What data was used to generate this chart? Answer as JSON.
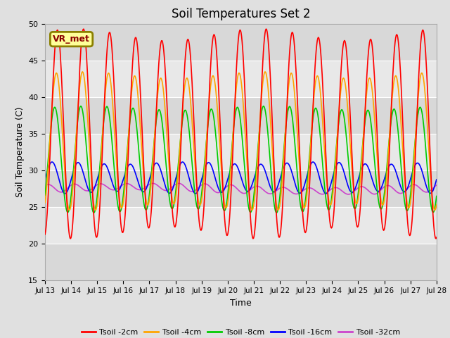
{
  "title": "Soil Temperatures Set 2",
  "xlabel": "Time",
  "ylabel": "Soil Temperature (C)",
  "ylim": [
    15,
    50
  ],
  "colors": {
    "Tsoil -2cm": "#ff0000",
    "Tsoil -4cm": "#ffa500",
    "Tsoil -8cm": "#00cc00",
    "Tsoil -16cm": "#0000ff",
    "Tsoil -32cm": "#cc44cc"
  },
  "annotation_text": "VR_met",
  "annotation_bbox": {
    "facecolor": "#ffff99",
    "edgecolor": "#8B8000",
    "linewidth": 2
  },
  "x_tick_labels": [
    "Jul 13",
    "Jul 14",
    "Jul 15",
    "Jul 16",
    "Jul 17",
    "Jul 18",
    "Jul 19",
    "Jul 20",
    "Jul 21",
    "Jul 22",
    "Jul 23",
    "Jul 24",
    "Jul 25",
    "Jul 26",
    "Jul 27",
    "Jul 28"
  ],
  "band_colors": [
    "#d8d8d8",
    "#e8e8e8",
    "#d8d8d8",
    "#e8e8e8",
    "#d8d8d8",
    "#e8e8e8",
    "#d8d8d8"
  ],
  "fig_bg": "#e0e0e0",
  "plot_bg": "#e8e8e8",
  "line_width": 1.2,
  "title_fontsize": 12
}
